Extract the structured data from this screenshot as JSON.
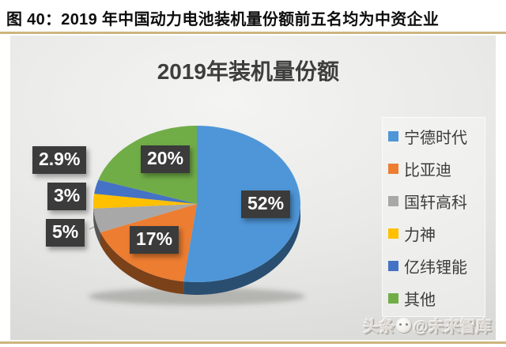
{
  "figure": {
    "caption": "图 40：2019 年中国动力电池装机量份额前五名均为中资企业",
    "rule_color": "#CDB57E"
  },
  "chart_data": {
    "type": "pie",
    "style": "3d",
    "title": "2019年装机量份额",
    "legend_position": "right",
    "labels": [
      "宁德时代",
      "比亚迪",
      "国轩高科",
      "力神",
      "亿纬锂能",
      "其他"
    ],
    "values": [
      52,
      17,
      5,
      3,
      2.9,
      20
    ],
    "display_labels": [
      "52%",
      "17%",
      "5%",
      "3%",
      "2.9%",
      "20%"
    ],
    "colors": [
      "#4E96D8",
      "#ED7D31",
      "#A8A8A8",
      "#FFC000",
      "#4472C4",
      "#70AD47"
    ],
    "label_box_color": "#3B3B3B",
    "label_text_color": "#FFFFFF"
  },
  "watermark": {
    "source": "头条",
    "handle": "@未来智库"
  }
}
